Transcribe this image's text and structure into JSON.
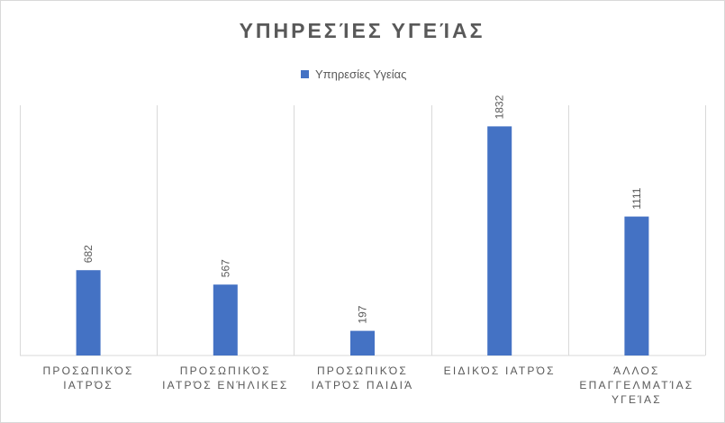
{
  "chart_data": {
    "type": "bar",
    "title": "ΥΠΗΡΕΣΊΕΣ ΥΓΕΊΑΣ",
    "categories": [
      [
        "ΠΡΟΣΩΠΙΚΌΣ",
        "ΙΑΤΡΌΣ"
      ],
      [
        "ΠΡΟΣΩΠΙΚΌΣ",
        "ΙΑΤΡΌΣ ΕΝΉΛΙΚΕΣ"
      ],
      [
        "ΠΡΟΣΩΠΙΚΌΣ",
        "ΙΑΤΡΌΣ ΠΑΙΔΙΆ"
      ],
      [
        "ΕΙΔΙΚΌΣ ΙΑΤΡΌΣ"
      ],
      [
        "ΆΛΛΟΣ",
        "ΕΠΑΓΓΕΛΜΑΤΊΑΣ",
        "ΥΓΕΊΑΣ"
      ]
    ],
    "series": [
      {
        "name": "Υπηρεσίες Υγείας",
        "values": [
          682,
          567,
          197,
          1832,
          1111
        ],
        "color": "#4472C4"
      }
    ],
    "data_labels": [
      "682",
      "567",
      "197",
      "1832",
      "1111"
    ],
    "ylim": [
      0,
      2000
    ],
    "legend_position": "top",
    "vertical_gridlines": true,
    "data_label_rotation": "vertical"
  }
}
